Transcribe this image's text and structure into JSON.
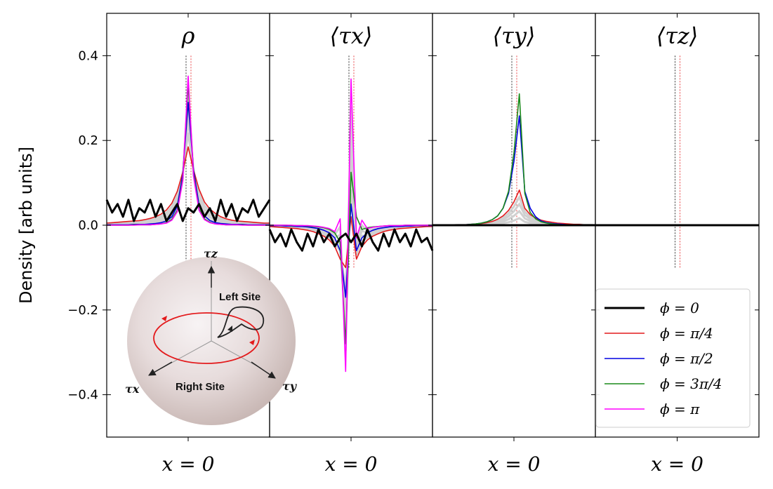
{
  "chart_data": {
    "type": "line",
    "ylabel": "Density [arb units]",
    "ylim": [
      -0.5,
      0.5
    ],
    "yticks": [
      {
        "value": 0.4,
        "label": "0.4"
      },
      {
        "value": 0.2,
        "label": "0.2"
      },
      {
        "value": 0.0,
        "label": "0.0"
      },
      {
        "value": -0.2,
        "label": "−0.2"
      },
      {
        "value": -0.4,
        "label": "−0.4"
      }
    ],
    "x": [
      -15,
      -14,
      -13,
      -12,
      -11,
      -10,
      -9,
      -8,
      -7,
      -6,
      -5,
      -4,
      -3,
      -2,
      -1,
      0,
      1,
      2,
      3,
      4,
      5,
      6,
      7,
      8,
      9,
      10,
      11,
      12,
      13,
      14,
      15
    ],
    "xlabel": "x = 0",
    "legend": {
      "placement": "lower-right of last panel",
      "entries": [
        {
          "label": "ϕ = 0",
          "color": "#000000"
        },
        {
          "label": "ϕ = π/4",
          "color": "#e31a1c"
        },
        {
          "label": "ϕ = π/2",
          "color": "#0000e0"
        },
        {
          "label": "ϕ = 3π/4",
          "color": "#1a8a1a"
        },
        {
          "label": "ϕ = π",
          "color": "#ff00ff"
        }
      ]
    },
    "panels": [
      {
        "title": "ρ",
        "series": [
          {
            "name": "ϕ = 0",
            "color": "#000000",
            "values": [
              0.06,
              0.03,
              0.05,
              0.02,
              0.06,
              0.01,
              0.04,
              0.03,
              0.06,
              0.02,
              0.05,
              0.01,
              0.03,
              0.05,
              0.01,
              0.04,
              0.03,
              0.05,
              0.02,
              0.04,
              0.01,
              0.06,
              0.02,
              0.05,
              0.01,
              0.04,
              0.03,
              0.06,
              0.02,
              0.04,
              0.06
            ]
          },
          {
            "name": "ϕ = π/4",
            "color": "#e31a1c",
            "values": [
              0.005,
              0.006,
              0.007,
              0.008,
              0.009,
              0.01,
              0.011,
              0.013,
              0.016,
              0.02,
              0.026,
              0.036,
              0.052,
              0.08,
              0.125,
              0.185,
              0.13,
              0.085,
              0.055,
              0.038,
              0.028,
              0.02,
              0.015,
              0.012,
              0.01,
              0.009,
              0.008,
              0.007,
              0.006,
              0.005,
              0.005
            ]
          },
          {
            "name": "ϕ = π/2",
            "color": "#0000e0",
            "values": [
              0.001,
              0.001,
              0.001,
              0.001,
              0.001,
              0.002,
              0.002,
              0.002,
              0.003,
              0.004,
              0.006,
              0.01,
              0.02,
              0.045,
              0.12,
              0.29,
              0.13,
              0.048,
              0.022,
              0.011,
              0.006,
              0.004,
              0.003,
              0.002,
              0.002,
              0.002,
              0.001,
              0.001,
              0.001,
              0.001,
              0.001
            ]
          },
          {
            "name": "ϕ = 3π/4",
            "color": "#1a8a1a",
            "values": [
              0.0,
              0.0,
              0.0,
              0.0,
              0.0,
              0.001,
              0.001,
              0.001,
              0.001,
              0.002,
              0.003,
              0.006,
              0.014,
              0.035,
              0.11,
              0.335,
              0.12,
              0.038,
              0.015,
              0.007,
              0.003,
              0.002,
              0.001,
              0.001,
              0.001,
              0.001,
              0.0,
              0.0,
              0.0,
              0.0,
              0.0
            ]
          },
          {
            "name": "ϕ = π",
            "color": "#ff00ff",
            "values": [
              0.0,
              0.0,
              0.0,
              0.0,
              0.0,
              0.0,
              0.001,
              0.001,
              0.001,
              0.002,
              0.003,
              0.005,
              0.012,
              0.032,
              0.105,
              0.352,
              0.115,
              0.035,
              0.013,
              0.006,
              0.003,
              0.002,
              0.001,
              0.001,
              0.001,
              0.0,
              0.0,
              0.0,
              0.0,
              0.0,
              0.0
            ]
          }
        ]
      },
      {
        "title": "⟨τx⟩",
        "series": [
          {
            "name": "ϕ = 0",
            "color": "#000000",
            "values": [
              -0.01,
              -0.04,
              -0.02,
              -0.05,
              -0.01,
              -0.04,
              -0.06,
              -0.02,
              -0.05,
              -0.01,
              -0.04,
              -0.02,
              -0.05,
              -0.03,
              -0.02,
              -0.04,
              -0.02,
              -0.05,
              -0.01,
              -0.04,
              -0.06,
              -0.02,
              -0.05,
              -0.01,
              -0.04,
              -0.02,
              -0.05,
              -0.01,
              -0.04,
              -0.03,
              -0.06
            ]
          },
          {
            "name": "ϕ = π/4",
            "color": "#e31a1c",
            "values": [
              -0.003,
              -0.004,
              -0.005,
              -0.006,
              -0.007,
              -0.008,
              -0.01,
              -0.012,
              -0.015,
              -0.02,
              -0.026,
              -0.035,
              -0.05,
              -0.08,
              -0.1,
              0.02,
              -0.08,
              -0.05,
              -0.035,
              -0.026,
              -0.02,
              -0.015,
              -0.012,
              -0.01,
              -0.008,
              -0.007,
              -0.006,
              -0.005,
              -0.004,
              -0.003,
              -0.003
            ]
          },
          {
            "name": "ϕ = π/2",
            "color": "#0000e0",
            "values": [
              -0.001,
              -0.001,
              -0.001,
              -0.002,
              -0.002,
              -0.003,
              -0.003,
              -0.004,
              -0.006,
              -0.008,
              -0.012,
              -0.018,
              -0.03,
              -0.06,
              -0.17,
              0.05,
              -0.06,
              -0.03,
              -0.018,
              -0.012,
              -0.008,
              -0.006,
              -0.004,
              -0.003,
              -0.003,
              -0.002,
              -0.002,
              -0.001,
              -0.001,
              -0.001,
              -0.001
            ]
          },
          {
            "name": "ϕ = 3π/4",
            "color": "#1a8a1a",
            "values": [
              0.0,
              0.0,
              0.0,
              0.0,
              -0.001,
              -0.001,
              -0.001,
              -0.002,
              -0.003,
              -0.004,
              -0.006,
              -0.01,
              -0.018,
              -0.04,
              -0.28,
              0.125,
              0.02,
              -0.01,
              -0.006,
              -0.004,
              -0.003,
              -0.002,
              -0.001,
              -0.001,
              -0.001,
              0.0,
              0.0,
              0.0,
              0.0,
              0.0,
              0.0
            ]
          },
          {
            "name": "ϕ = π",
            "color": "#ff00ff",
            "values": [
              0.0,
              0.0,
              0.0,
              0.0,
              0.0,
              -0.001,
              -0.001,
              -0.001,
              -0.002,
              -0.003,
              -0.005,
              -0.008,
              -0.015,
              0.015,
              -0.345,
              0.345,
              -0.03,
              0.012,
              -0.008,
              -0.005,
              -0.003,
              -0.002,
              -0.001,
              -0.001,
              -0.001,
              0.0,
              0.0,
              0.0,
              0.0,
              0.0,
              0.0
            ]
          }
        ]
      },
      {
        "title": "⟨τy⟩",
        "series": [
          {
            "name": "ϕ = 0",
            "color": "#000000",
            "values": [
              0.0,
              0.0,
              0.0,
              0.0,
              0.0,
              0.0,
              0.0,
              0.0,
              0.0,
              0.0,
              0.0,
              0.0,
              0.0,
              0.0,
              0.0,
              0.0,
              0.0,
              0.0,
              0.0,
              0.0,
              0.0,
              0.0,
              0.0,
              0.0,
              0.0,
              0.0,
              0.0,
              0.0,
              0.0,
              0.0,
              0.0
            ]
          },
          {
            "name": "ϕ = π/4",
            "color": "#e31a1c",
            "values": [
              0.0,
              0.0,
              0.0,
              0.0,
              0.0,
              0.001,
              0.001,
              0.002,
              0.003,
              0.004,
              0.006,
              0.009,
              0.014,
              0.022,
              0.035,
              0.055,
              0.083,
              0.04,
              0.025,
              0.017,
              0.012,
              0.009,
              0.007,
              0.005,
              0.004,
              0.003,
              0.002,
              0.002,
              0.001,
              0.001,
              0.0
            ]
          },
          {
            "name": "ϕ = π/2",
            "color": "#0000e0",
            "values": [
              0.0,
              0.0,
              0.0,
              0.0,
              0.0,
              0.001,
              0.001,
              0.002,
              0.003,
              0.005,
              0.008,
              0.013,
              0.022,
              0.04,
              0.075,
              0.15,
              0.258,
              0.08,
              0.04,
              0.02,
              0.01,
              0.006,
              0.004,
              0.003,
              0.002,
              0.001,
              0.001,
              0.001,
              0.0,
              0.0,
              0.0
            ]
          },
          {
            "name": "ϕ = 3π/4",
            "color": "#1a8a1a",
            "values": [
              0.0,
              0.0,
              0.0,
              0.0,
              0.0,
              0.001,
              0.001,
              0.002,
              0.003,
              0.005,
              0.008,
              0.013,
              0.022,
              0.04,
              0.08,
              0.17,
              0.31,
              0.075,
              0.03,
              0.015,
              0.008,
              0.005,
              0.003,
              0.002,
              0.001,
              0.001,
              0.001,
              0.0,
              0.0,
              0.0,
              0.0
            ]
          },
          {
            "name": "ϕ = π",
            "color": "#ff00ff",
            "values": [
              0.0,
              0.0,
              0.0,
              0.0,
              0.0,
              0.0,
              0.0,
              0.0,
              0.0,
              0.0,
              0.0,
              0.0,
              0.0,
              0.0,
              0.0,
              0.0,
              0.0,
              0.0,
              0.0,
              0.0,
              0.0,
              0.0,
              0.0,
              0.0,
              0.0,
              0.0,
              0.0,
              0.0,
              0.0,
              0.0,
              0.0
            ]
          }
        ]
      },
      {
        "title": "⟨τz⟩",
        "series": [
          {
            "name": "ϕ = 0",
            "color": "#000000",
            "values": [
              0.0,
              0.0,
              0.0,
              0.0,
              0.0,
              0.0,
              0.0,
              0.0,
              0.0,
              0.0,
              0.0,
              0.0,
              0.0,
              0.0,
              0.0,
              0.0,
              0.0,
              0.0,
              0.0,
              0.0,
              0.0,
              0.0,
              0.0,
              0.0,
              0.0,
              0.0,
              0.0,
              0.0,
              0.0,
              0.0,
              0.0
            ]
          },
          {
            "name": "ϕ = π/4",
            "color": "#e31a1c",
            "values": [
              0.0,
              0.0,
              0.0,
              0.0,
              0.0,
              0.0,
              0.0,
              0.0,
              0.0,
              0.0,
              0.0,
              0.0,
              0.0,
              0.0,
              0.0,
              0.0,
              0.0,
              0.0,
              0.0,
              0.0,
              0.0,
              0.0,
              0.0,
              0.0,
              0.0,
              0.0,
              0.0,
              0.0,
              0.0,
              0.0,
              0.0
            ]
          },
          {
            "name": "ϕ = π/2",
            "color": "#0000e0",
            "values": [
              0.0,
              0.0,
              0.0,
              0.0,
              0.0,
              0.0,
              0.0,
              0.0,
              0.0,
              0.0,
              0.0,
              0.0,
              0.0,
              0.0,
              0.0,
              0.0,
              0.0,
              0.0,
              0.0,
              0.0,
              0.0,
              0.0,
              0.0,
              0.0,
              0.0,
              0.0,
              0.0,
              0.0,
              0.0,
              0.0,
              0.0
            ]
          },
          {
            "name": "ϕ = 3π/4",
            "color": "#1a8a1a",
            "values": [
              0.0,
              0.0,
              0.0,
              0.0,
              0.0,
              0.0,
              0.0,
              0.0,
              0.0,
              0.0,
              0.0,
              0.0,
              0.0,
              0.0,
              0.0,
              0.0,
              0.0,
              0.0,
              0.0,
              0.0,
              0.0,
              0.0,
              0.0,
              0.0,
              0.0,
              0.0,
              0.0,
              0.0,
              0.0,
              0.0,
              0.0
            ]
          },
          {
            "name": "ϕ = π",
            "color": "#ff00ff",
            "values": [
              0.0,
              0.0,
              0.0,
              0.0,
              0.0,
              0.0,
              0.0,
              0.0,
              0.0,
              0.0,
              0.0,
              0.0,
              0.0,
              0.0,
              0.0,
              0.0,
              0.0,
              0.0,
              0.0,
              0.0,
              0.0,
              0.0,
              0.0,
              0.0,
              0.0,
              0.0,
              0.0,
              0.0,
              0.0,
              0.0,
              0.0
            ]
          }
        ]
      }
    ],
    "inset": {
      "axis_labels": {
        "z": "τz",
        "x": "τx",
        "y": "τy"
      },
      "left_site": "Left Site",
      "right_site": "Right Site"
    }
  }
}
